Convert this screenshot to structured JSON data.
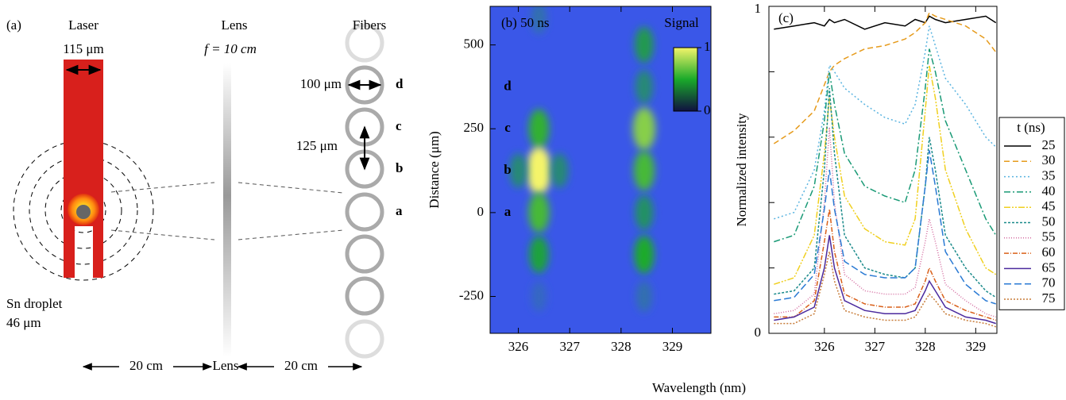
{
  "diagram": {
    "panel": "(a)",
    "laser": "Laser",
    "laser_width": "115 μm",
    "lens": "Lens",
    "focal_length": "f = 10 cm",
    "fibers": "Fibers",
    "fiber_diameter": "100 μm",
    "fiber_pitch": "125 μm",
    "fiber_labels": [
      "d",
      "c",
      "b",
      "a"
    ],
    "droplet": "Sn droplet",
    "droplet_size": "46 μm",
    "distance_left": "20 cm",
    "lens_bottom": "Lens",
    "distance_right": "20 cm"
  },
  "chart_data": [
    {
      "type": "heatmap",
      "title": "(b) 50 ns",
      "ylabel": "Distance (μm)",
      "xlim": [
        325.45,
        329.75
      ],
      "ylim": [
        -360,
        615
      ],
      "xticks": [
        326,
        327,
        328,
        329
      ],
      "yticks": [
        -250,
        0,
        250,
        500
      ],
      "row_labels": [
        "d",
        "c",
        "b",
        "a"
      ],
      "row_positions": [
        375,
        250,
        125,
        0
      ],
      "colorbar_label": "Signal",
      "colorbar_ticks": [
        0,
        1
      ],
      "x": [
        326.4,
        326.4,
        326.4,
        326.4,
        326.4,
        326.4,
        328.45,
        328.45,
        328.45,
        328.45,
        328.45,
        328.45,
        328.45,
        326.0,
        326.8
      ],
      "y": [
        580,
        250,
        125,
        0,
        -125,
        -250,
        500,
        375,
        250,
        125,
        0,
        -125,
        -250,
        125,
        125
      ],
      "values": [
        0.15,
        0.55,
        1.0,
        0.6,
        0.45,
        0.1,
        0.4,
        0.3,
        0.75,
        0.6,
        0.35,
        0.5,
        0.15,
        0.3,
        0.3
      ]
    },
    {
      "type": "line",
      "title": "(c)",
      "xlabel": "Wavelength (nm)",
      "ylabel": "Normalized intensity",
      "xlim": [
        324.9,
        329.42
      ],
      "ylim": [
        0,
        1
      ],
      "xticks": [
        326,
        327,
        328,
        329
      ],
      "yticks": [
        0,
        1
      ],
      "minor_yticks": [
        0.2,
        0.4,
        0.6,
        0.8
      ],
      "legend_title": "t (ns)",
      "legend": "right",
      "x": [
        325.0,
        325.4,
        325.8,
        326.0,
        326.1,
        326.2,
        326.4,
        326.8,
        327.2,
        327.6,
        327.8,
        328.0,
        328.08,
        328.2,
        328.4,
        328.8,
        329.2,
        329.4
      ],
      "series": [
        {
          "name": "25",
          "color": "#000000",
          "dash": "none",
          "values": [
            0.93,
            0.94,
            0.95,
            0.94,
            0.96,
            0.95,
            0.96,
            0.93,
            0.95,
            0.94,
            0.96,
            0.95,
            0.97,
            0.96,
            0.95,
            0.96,
            0.97,
            0.95
          ]
        },
        {
          "name": "30",
          "color": "#e69b1c",
          "dash": "7 4",
          "values": [
            0.58,
            0.62,
            0.68,
            0.76,
            0.8,
            0.82,
            0.84,
            0.87,
            0.88,
            0.9,
            0.92,
            0.95,
            0.98,
            0.97,
            0.96,
            0.94,
            0.9,
            0.86
          ]
        },
        {
          "name": "35",
          "color": "#5ab4e0",
          "dash": "2 3",
          "values": [
            0.35,
            0.37,
            0.5,
            0.68,
            0.82,
            0.8,
            0.75,
            0.7,
            0.66,
            0.64,
            0.7,
            0.86,
            0.94,
            0.88,
            0.78,
            0.7,
            0.6,
            0.57
          ]
        },
        {
          "name": "40",
          "color": "#1a9a76",
          "dash": "8 3 2 3",
          "values": [
            0.28,
            0.3,
            0.45,
            0.65,
            0.8,
            0.7,
            0.55,
            0.45,
            0.42,
            0.4,
            0.5,
            0.75,
            0.87,
            0.8,
            0.65,
            0.5,
            0.35,
            0.3
          ]
        },
        {
          "name": "45",
          "color": "#f0d020",
          "dash": "8 2 2 2 2 2",
          "values": [
            0.15,
            0.17,
            0.3,
            0.55,
            0.72,
            0.6,
            0.42,
            0.32,
            0.28,
            0.27,
            0.35,
            0.68,
            0.82,
            0.72,
            0.5,
            0.32,
            0.2,
            0.18
          ]
        },
        {
          "name": "50",
          "color": "#1a8a8a",
          "dash": "3 2",
          "values": [
            0.12,
            0.13,
            0.2,
            0.5,
            0.75,
            0.55,
            0.3,
            0.2,
            0.18,
            0.17,
            0.2,
            0.45,
            0.6,
            0.5,
            0.3,
            0.2,
            0.13,
            0.11
          ]
        },
        {
          "name": "55",
          "color": "#d46ca0",
          "dash": "1 2",
          "values": [
            0.06,
            0.07,
            0.12,
            0.4,
            0.63,
            0.4,
            0.18,
            0.13,
            0.12,
            0.12,
            0.14,
            0.28,
            0.35,
            0.28,
            0.15,
            0.1,
            0.06,
            0.05
          ]
        },
        {
          "name": "60",
          "color": "#d9601a",
          "dash": "6 2 1 2",
          "values": [
            0.05,
            0.05,
            0.1,
            0.28,
            0.38,
            0.25,
            0.12,
            0.09,
            0.08,
            0.08,
            0.09,
            0.16,
            0.2,
            0.16,
            0.1,
            0.07,
            0.05,
            0.04
          ]
        },
        {
          "name": "65",
          "color": "#4b2a9e",
          "dash": "none",
          "values": [
            0.04,
            0.05,
            0.08,
            0.2,
            0.3,
            0.2,
            0.1,
            0.07,
            0.06,
            0.06,
            0.07,
            0.13,
            0.16,
            0.13,
            0.08,
            0.05,
            0.04,
            0.03
          ]
        },
        {
          "name": "70",
          "color": "#2a7ad4",
          "dash": "9 4",
          "values": [
            0.1,
            0.11,
            0.18,
            0.38,
            0.5,
            0.38,
            0.22,
            0.18,
            0.17,
            0.17,
            0.2,
            0.45,
            0.56,
            0.45,
            0.25,
            0.15,
            0.1,
            0.09
          ]
        },
        {
          "name": "75",
          "color": "#c87d3a",
          "dash": "2 2",
          "values": [
            0.03,
            0.03,
            0.06,
            0.18,
            0.25,
            0.16,
            0.07,
            0.05,
            0.04,
            0.04,
            0.05,
            0.1,
            0.12,
            0.1,
            0.06,
            0.04,
            0.03,
            0.02
          ]
        }
      ]
    }
  ]
}
